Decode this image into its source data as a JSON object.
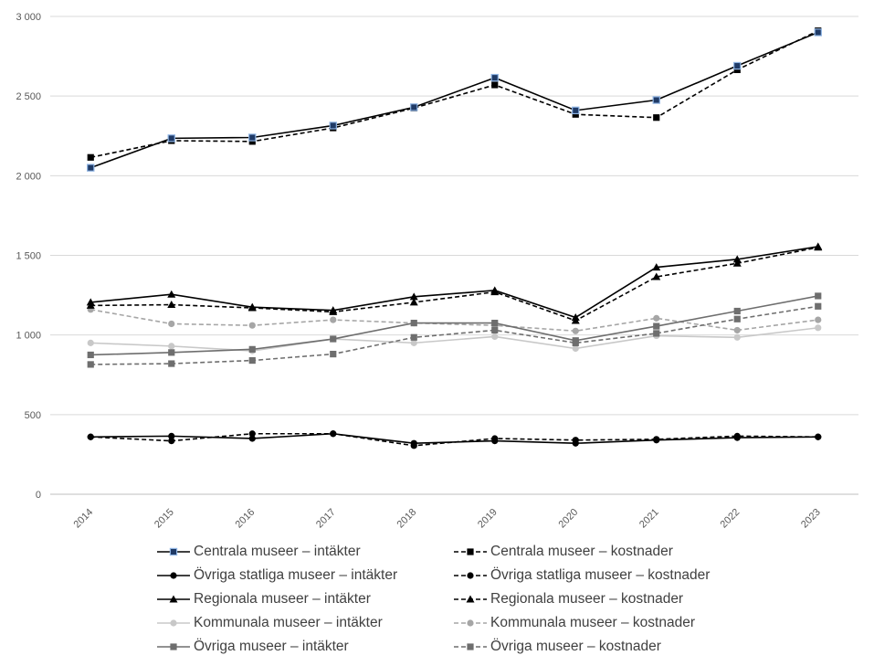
{
  "chart_data": {
    "type": "line",
    "title": "",
    "xlabel": "",
    "ylabel": "",
    "ylim": [
      0,
      3000
    ],
    "yticks": [
      0,
      500,
      1000,
      1500,
      2000,
      2500,
      3000
    ],
    "ytick_labels": [
      "0",
      "500",
      "1 000",
      "1 500",
      "2 000",
      "2 500",
      "3 000"
    ],
    "grid": true,
    "legend_position": "bottom",
    "categories": [
      "2014",
      "2015",
      "2016",
      "2017",
      "2018",
      "2019",
      "2020",
      "2021",
      "2022",
      "2023"
    ],
    "series": [
      {
        "name": "Centrala museer – intäkter",
        "color": "#000000",
        "dash": "solid",
        "marker": "square-blue",
        "values": [
          2050,
          2235,
          2240,
          2315,
          2430,
          2615,
          2410,
          2475,
          2690,
          2900
        ]
      },
      {
        "name": "Centrala museer – kostnader",
        "color": "#000000",
        "dash": "dashed",
        "marker": "square",
        "values": [
          2115,
          2220,
          2215,
          2300,
          2425,
          2570,
          2385,
          2365,
          2665,
          2910
        ]
      },
      {
        "name": "Övriga statliga museer – intäkter",
        "color": "#000000",
        "dash": "solid",
        "marker": "circle",
        "values": [
          360,
          365,
          350,
          380,
          320,
          335,
          320,
          340,
          355,
          360
        ]
      },
      {
        "name": "Övriga statliga museer – kostnader",
        "color": "#000000",
        "dash": "dashed",
        "marker": "circle",
        "values": [
          360,
          335,
          380,
          380,
          305,
          350,
          340,
          345,
          365,
          360
        ]
      },
      {
        "name": "Regionala museer – intäkter",
        "color": "#000000",
        "dash": "solid",
        "marker": "triangle",
        "values": [
          1205,
          1255,
          1175,
          1155,
          1240,
          1280,
          1110,
          1425,
          1475,
          1555
        ]
      },
      {
        "name": "Regionala museer – kostnader",
        "color": "#000000",
        "dash": "dashed",
        "marker": "triangle",
        "values": [
          1185,
          1190,
          1170,
          1145,
          1205,
          1270,
          1090,
          1365,
          1450,
          1550
        ]
      },
      {
        "name": "Kommunala museer – intäkter",
        "color": "#c8c8c8",
        "dash": "solid",
        "marker": "circle",
        "values": [
          950,
          930,
          900,
          975,
          950,
          990,
          915,
          995,
          985,
          1045
        ]
      },
      {
        "name": "Kommunala museer – kostnader",
        "color": "#a6a6a6",
        "dash": "dashed",
        "marker": "circle",
        "values": [
          1160,
          1070,
          1060,
          1095,
          1075,
          1060,
          1025,
          1105,
          1030,
          1095
        ]
      },
      {
        "name": "Övriga museer – intäkter",
        "color": "#6e6e6e",
        "dash": "solid",
        "marker": "square",
        "values": [
          875,
          890,
          910,
          975,
          1075,
          1075,
          965,
          1055,
          1150,
          1245
        ]
      },
      {
        "name": "Övriga museer – kostnader",
        "color": "#6e6e6e",
        "dash": "dashed",
        "marker": "square",
        "values": [
          815,
          820,
          840,
          880,
          985,
          1030,
          950,
          1010,
          1100,
          1180
        ]
      }
    ]
  }
}
